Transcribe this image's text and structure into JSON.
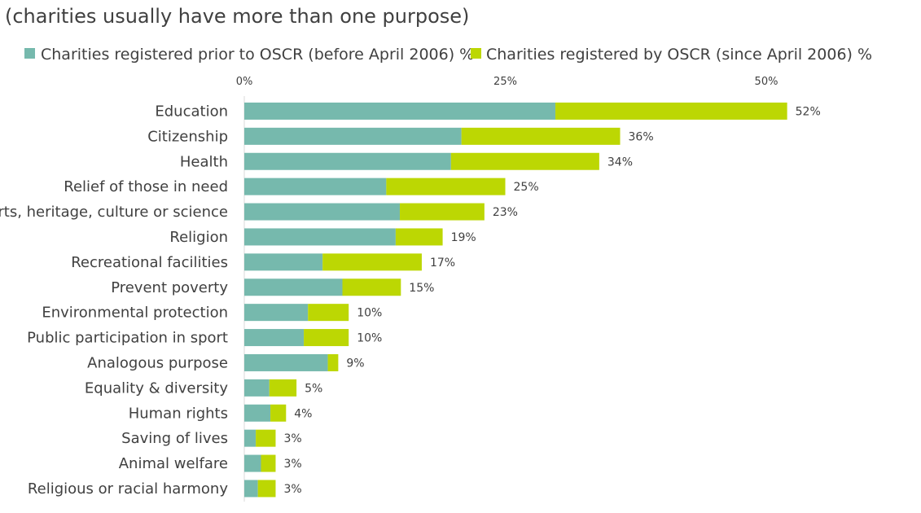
{
  "chart_data": {
    "type": "bar",
    "orientation": "horizontal",
    "stacked": true,
    "subtitle": "(charities usually have more than one purpose)",
    "categories": [
      "Education",
      "Citizenship",
      "Health",
      "Relief of those in need",
      "Arts, heritage, culture or science",
      "Religion",
      "Recreational facilities",
      "Prevent poverty",
      "Environmental protection",
      "Public participation in sport",
      "Analogous purpose",
      "Equality & diversity",
      "Human rights",
      "Saving of lives",
      "Animal welfare",
      "Religious or racial harmony"
    ],
    "series": [
      {
        "name": "Charities registered prior to OSCR (before April 2006) %",
        "color": "#76b9ad",
        "values": [
          29.8,
          20.8,
          19.8,
          13.6,
          14.9,
          14.5,
          7.5,
          9.4,
          6.1,
          5.7,
          8.0,
          2.4,
          2.5,
          1.1,
          1.6,
          1.3
        ]
      },
      {
        "name": "Charities registered by OSCR (since April 2006) %",
        "color": "#bcd703",
        "values": [
          22.2,
          15.2,
          14.2,
          11.4,
          8.1,
          4.5,
          9.5,
          5.6,
          3.9,
          4.3,
          1.0,
          2.6,
          1.5,
          1.9,
          1.4,
          1.7
        ]
      }
    ],
    "data_labels": [
      "52%",
      "36%",
      "34%",
      "25%",
      "23%",
      "19%",
      "17%",
      "15%",
      "10%",
      "10%",
      "9%",
      "5%",
      "4%",
      "3%",
      "3%",
      "3%"
    ],
    "x_ticks": [
      0,
      25,
      50
    ],
    "x_tick_labels": [
      "0%",
      "25%",
      "50%"
    ],
    "xlim": [
      0,
      60
    ],
    "grid": false,
    "legend_position": "top"
  }
}
